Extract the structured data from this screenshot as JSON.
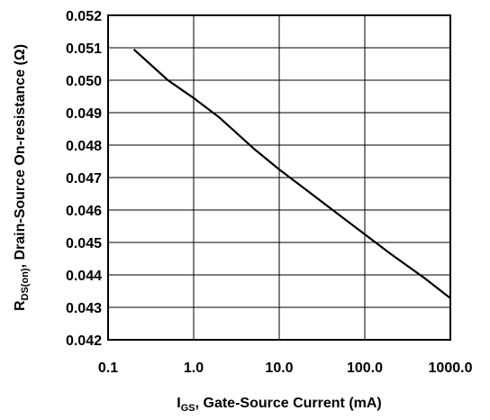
{
  "chart_data": {
    "type": "line",
    "x_scale": "log",
    "xlim": [
      0.1,
      1000
    ],
    "ylim": [
      0.042,
      0.052
    ],
    "grid": true,
    "x_ticks": [
      0.1,
      1,
      10,
      100,
      1000
    ],
    "x_tick_labels": [
      "0.1",
      "1.0",
      "10.0",
      "100.0",
      "1000.0"
    ],
    "y_ticks": [
      0.042,
      0.043,
      0.044,
      0.045,
      0.046,
      0.047,
      0.048,
      0.049,
      0.05,
      0.051,
      0.052
    ],
    "y_tick_labels": [
      "0.042",
      "0.043",
      "0.044",
      "0.045",
      "0.046",
      "0.047",
      "0.048",
      "0.049",
      "0.050",
      "0.051",
      "0.052"
    ],
    "xlabel": {
      "main": "I",
      "sub": "GS",
      "rest": ", Gate-Source Current (mA)"
    },
    "ylabel": {
      "main": "R",
      "sub": "DS(on)",
      "rest": ", Drain-Source On-resistance (Ω)"
    },
    "series": [
      {
        "color": "#000000",
        "x": [
          0.2,
          0.5,
          1,
          2,
          5,
          10,
          20,
          50,
          100,
          200,
          500,
          1000
        ],
        "values": [
          0.05095,
          0.05,
          0.04945,
          0.04885,
          0.0479,
          0.04725,
          0.04665,
          0.04585,
          0.04525,
          0.04465,
          0.0439,
          0.04328
        ]
      }
    ]
  }
}
